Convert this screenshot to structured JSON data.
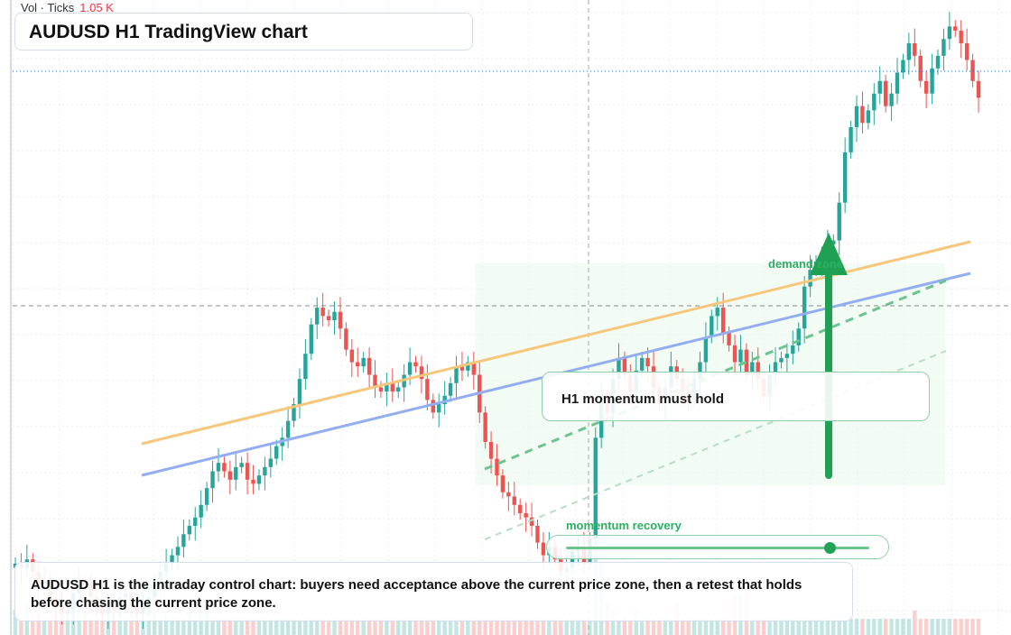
{
  "header": {
    "volume_label": "Vol · Ticks",
    "volume_value": "1.05 K",
    "title": "AUDUSD H1 TradingView chart"
  },
  "annotations": {
    "callout": "H1 momentum must hold",
    "demand_zone": "demand zone",
    "momentum_label": "momentum recovery",
    "momentum_level": 0.87
  },
  "caption": "AUDUSD H1 is the intraday control chart: buyers need acceptance above the current price zone, then a retest that holds before chasing the current price zone.",
  "colors": {
    "up": "#26a69a",
    "down": "#ef5350",
    "trend_orange": "#f6c77a",
    "trend_blue": "#93aef0",
    "support_green": "#2bb062"
  },
  "chart_data": {
    "type": "candlestick",
    "ylim": [
      0,
      100
    ],
    "candles_close": [
      22,
      21,
      23,
      20,
      17,
      18,
      14,
      12,
      10,
      11,
      15,
      18,
      17,
      14,
      12,
      10,
      12,
      11,
      14,
      15,
      12,
      10,
      12,
      14,
      18,
      20,
      22,
      24,
      26,
      29,
      31,
      33,
      36,
      40,
      44,
      46,
      44,
      42,
      45,
      46,
      42,
      41,
      43,
      45,
      47,
      50,
      52,
      56,
      60,
      66,
      72,
      79,
      83,
      81,
      80,
      82,
      78,
      73,
      70,
      69,
      71,
      67,
      64,
      63,
      65,
      63,
      64,
      67,
      70,
      69,
      66,
      61,
      58,
      60,
      62,
      65,
      69,
      68,
      70,
      67,
      58,
      51,
      47,
      43,
      39,
      38,
      36,
      34,
      33,
      31,
      27,
      24,
      26,
      23,
      20,
      21,
      25,
      26,
      22,
      28,
      52,
      62,
      58,
      66,
      71,
      67,
      63,
      68,
      71,
      69,
      64,
      60,
      64,
      69,
      66,
      63,
      61,
      66,
      70,
      76,
      81,
      83,
      77,
      74,
      70,
      73,
      67,
      70,
      66,
      62,
      67,
      70,
      71,
      72,
      74,
      78,
      88,
      92,
      94,
      95,
      98,
      99,
      108,
      120,
      126,
      131,
      127,
      130,
      134,
      137,
      131,
      134,
      139,
      142,
      146,
      143,
      137,
      134,
      140,
      143,
      147,
      150,
      149,
      146,
      142,
      137,
      133
    ],
    "volume_relative": [
      0.3,
      0.2,
      0.4,
      0.2,
      0.3,
      0.2,
      0.2,
      0.3,
      0.2,
      0.2,
      0.4,
      0.5,
      0.3,
      0.2,
      0.2,
      0.3,
      0.2,
      0.2,
      0.3,
      0.2,
      0.2,
      0.2,
      0.2,
      0.3,
      0.3,
      0.2,
      0.3,
      0.2,
      0.2,
      0.2,
      0.3,
      0.2,
      0.3,
      0.3,
      0.2,
      0.2,
      0.2,
      0.2,
      0.2,
      0.2,
      0.2,
      0.2,
      0.2,
      0.2,
      0.2,
      0.2,
      0.2,
      0.2,
      0.2,
      0.2,
      0.2,
      0.2,
      0.2,
      0.2,
      0.2,
      0.2,
      0.2,
      0.2,
      0.2,
      0.2,
      0.2,
      0.2,
      0.2,
      0.2,
      0.2,
      0.2,
      0.2,
      0.2,
      0.2,
      0.2,
      0.2,
      0.2,
      0.2,
      0.2,
      0.2,
      0.2,
      0.2,
      0.2,
      0.2,
      0.2,
      0.2,
      0.2,
      0.2,
      0.2,
      0.2,
      0.2,
      0.2,
      0.2,
      0.2,
      0.2,
      0.2,
      0.2,
      0.2,
      0.2,
      0.2,
      0.2,
      0.2,
      0.2,
      0.2,
      0.2,
      1.0,
      0.9,
      0.4,
      0.3,
      0.2,
      0.2,
      0.2,
      0.3,
      0.2,
      0.2,
      0.2,
      0.2,
      0.2,
      0.2,
      0.4,
      0.2,
      0.2,
      0.2,
      0.2,
      0.2,
      0.2,
      0.2,
      0.2,
      0.2,
      0.5,
      0.5,
      0.6,
      0.2,
      0.2,
      0.2,
      0.2,
      0.2,
      0.2,
      0.2,
      0.2,
      0.2,
      0.2,
      0.2,
      0.2,
      0.2,
      0.2,
      0.2,
      0.2,
      0.2,
      0.2,
      0.2,
      0.2,
      0.2,
      0.2,
      0.2,
      0.2,
      0.2,
      0.2,
      0.2,
      0.2,
      0.3,
      0.2,
      0.2,
      0.2,
      0.2,
      0.2,
      0.2,
      0.2,
      0.2,
      0.2,
      0.2,
      0.2
    ]
  }
}
